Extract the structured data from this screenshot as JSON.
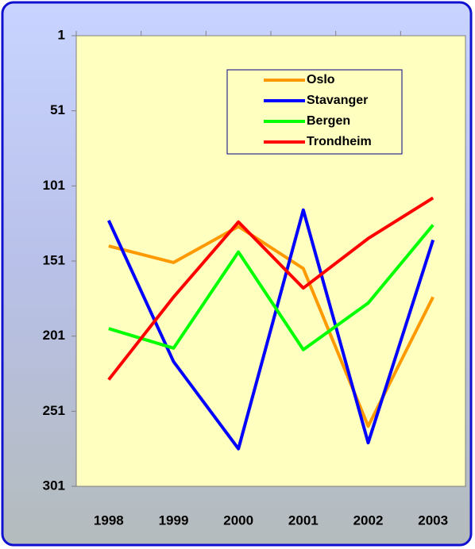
{
  "chart_data": {
    "type": "line",
    "categories": [
      "1998",
      "1999",
      "2000",
      "2001",
      "2002",
      "2003"
    ],
    "series": [
      {
        "name": "Oslo",
        "color": "#ff9900",
        "values": [
          141,
          152,
          128,
          156,
          261,
          175
        ]
      },
      {
        "name": "Stavanger",
        "color": "#0000ff",
        "values": [
          124,
          218,
          276,
          117,
          272,
          137
        ]
      },
      {
        "name": "Bergen",
        "color": "#00ff00",
        "values": [
          196,
          209,
          145,
          210,
          179,
          127
        ]
      },
      {
        "name": "Trondheim",
        "color": "#ff0000",
        "values": [
          230,
          175,
          125,
          169,
          136,
          109
        ]
      }
    ],
    "ylim": [
      1,
      301
    ],
    "y_reversed": true,
    "yticks": [
      1,
      51,
      101,
      151,
      201,
      251,
      301
    ],
    "grid": false,
    "legend_position": "top-right"
  }
}
